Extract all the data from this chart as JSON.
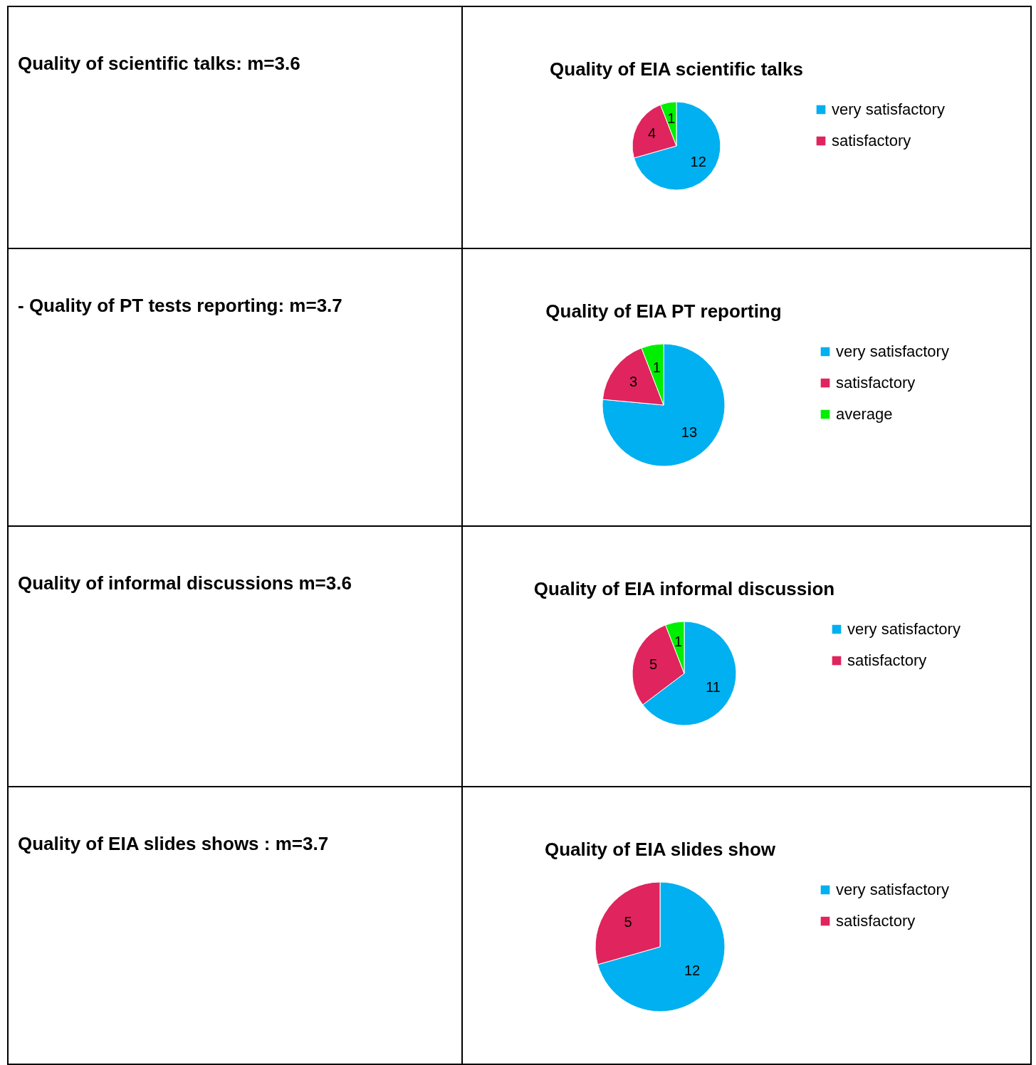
{
  "chart_data": [
    {
      "type": "other",
      "title": "Quality of scientific talks: m=3.6"
    },
    {
      "type": "pie",
      "title": "Quality of EIA scientific talks",
      "categories": [
        "very satisfactory",
        "satisfactory",
        null
      ],
      "values": [
        12,
        4,
        1
      ],
      "colors": [
        "#00b0f0",
        "#e0245e",
        "#00ee00"
      ],
      "data_labels": true,
      "legend": "right"
    },
    {
      "type": "other",
      "title": "- Quality of PT tests reporting: m=3.7"
    },
    {
      "type": "pie",
      "title": "Quality of EIA PT reporting",
      "categories": [
        "very satisfactory",
        "satisfactory",
        "average"
      ],
      "values": [
        13,
        3,
        1
      ],
      "colors": [
        "#00b0f0",
        "#e0245e",
        "#00ee00"
      ],
      "data_labels": true,
      "legend": "right"
    },
    {
      "type": "other",
      "title": "Quality of informal discussions m=3.6"
    },
    {
      "type": "pie",
      "title": "Quality of EIA informal discussion",
      "categories": [
        "very satisfactory",
        "satisfactory",
        null
      ],
      "values": [
        11,
        5,
        1
      ],
      "colors": [
        "#00b0f0",
        "#e0245e",
        "#00ee00"
      ],
      "data_labels": true,
      "legend": "right"
    },
    {
      "type": "other",
      "title": "Quality of EIA slides shows : m=3.7"
    },
    {
      "type": "pie",
      "title": "Quality of EIA slides show",
      "categories": [
        "very satisfactory",
        "satisfactory"
      ],
      "values": [
        12,
        5
      ],
      "colors": [
        "#00b0f0",
        "#e0245e"
      ],
      "data_labels": true,
      "legend": "right"
    }
  ]
}
